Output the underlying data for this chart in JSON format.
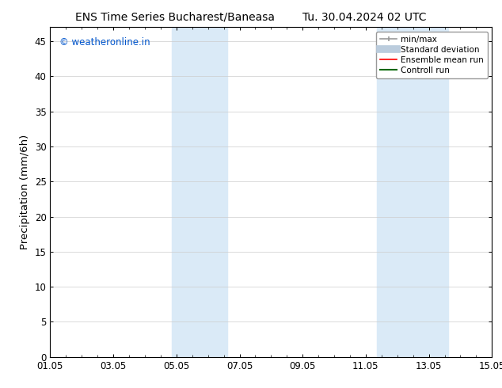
{
  "title_left": "ENS Time Series Bucharest/Baneasa",
  "title_right": "Tu. 30.04.2024 02 UTC",
  "ylabel": "Precipitation (mm/6h)",
  "ylim": [
    0,
    47
  ],
  "yticks": [
    0,
    5,
    10,
    15,
    20,
    25,
    30,
    35,
    40,
    45
  ],
  "xtick_labels": [
    "01.05",
    "03.05",
    "05.05",
    "07.05",
    "09.05",
    "11.05",
    "13.05",
    "15.05"
  ],
  "xtick_positions": [
    0,
    2,
    4,
    6,
    8,
    10,
    12,
    14
  ],
  "xlim": [
    0,
    14
  ],
  "shaded_regions": [
    {
      "x_start": 3.85,
      "x_end": 5.6,
      "color": "#daeaf7"
    },
    {
      "x_start": 10.35,
      "x_end": 12.6,
      "color": "#daeaf7"
    }
  ],
  "watermark_text": "© weatheronline.in",
  "watermark_color": "#0055cc",
  "legend_items": [
    {
      "label": "min/max",
      "color": "#999999",
      "lw": 1.2,
      "marker": true
    },
    {
      "label": "Standard deviation",
      "color": "#bbccdd",
      "lw": 7
    },
    {
      "label": "Ensemble mean run",
      "color": "#ff0000",
      "lw": 1.2
    },
    {
      "label": "Controll run",
      "color": "#006600",
      "lw": 1.5
    }
  ],
  "bg_color": "#ffffff",
  "grid_color": "#cccccc",
  "tick_label_fontsize": 8.5,
  "axis_label_fontsize": 9.5,
  "title_fontsize": 10,
  "legend_fontsize": 7.5
}
